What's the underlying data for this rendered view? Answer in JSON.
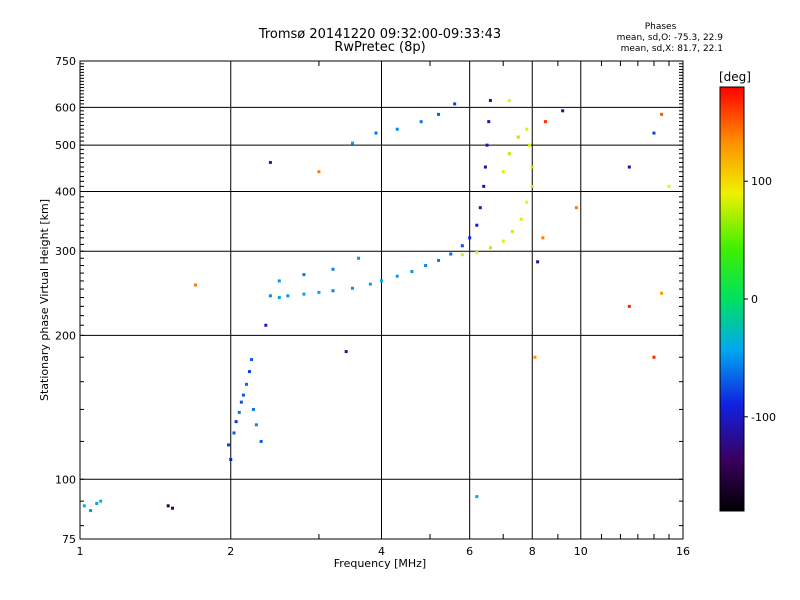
{
  "header": {
    "title_line1": "Tromsø 20141220 09:32:00-09:33:43",
    "title_line2": "RwPretec (8p)"
  },
  "phases": {
    "heading": "Phases",
    "line_o": "mean, sd,O: -75.3, 22.9",
    "line_x": "mean, sd,X:  81.7, 22.1"
  },
  "colorbar": {
    "label": "[deg]",
    "ticks": [
      "100",
      "0",
      "-100"
    ],
    "tick_values": [
      100,
      0,
      -100
    ],
    "range": [
      -180,
      180
    ]
  },
  "chart_data": {
    "type": "scatter",
    "title": "Tromsø 20141220 09:32:00-09:33:43",
    "subtitle": "RwPretec (8p)",
    "xlabel": "Frequency [MHz]",
    "ylabel": "Stationary phase Virtual Height [km]",
    "x_scale": "log",
    "y_scale": "log",
    "xlim": [
      1,
      16
    ],
    "ylim": [
      75,
      750
    ],
    "x_ticks": [
      1,
      2,
      4,
      6,
      8,
      10,
      16
    ],
    "x_tick_labels": [
      "1",
      "2",
      "4",
      "6",
      "8",
      "10",
      "16"
    ],
    "y_ticks": [
      75,
      100,
      200,
      300,
      400,
      500,
      600,
      750
    ],
    "y_tick_labels": [
      "75",
      "100",
      "200",
      "300",
      "400",
      "500",
      "600",
      "750"
    ],
    "grid": true,
    "color_scale": "phase [deg], rainbow from -180 (black) to 180 (red)",
    "series": [
      {
        "name": "O",
        "points": [
          {
            "x": 1.02,
            "y": 88,
            "phase": -40
          },
          {
            "x": 1.05,
            "y": 86,
            "phase": -50
          },
          {
            "x": 1.08,
            "y": 89,
            "phase": -45
          },
          {
            "x": 1.1,
            "y": 90,
            "phase": -35
          },
          {
            "x": 1.5,
            "y": 88,
            "phase": -150
          },
          {
            "x": 1.53,
            "y": 87,
            "phase": -140
          },
          {
            "x": 2.0,
            "y": 110,
            "phase": -90
          },
          {
            "x": 1.98,
            "y": 118,
            "phase": -80
          },
          {
            "x": 2.03,
            "y": 125,
            "phase": -70
          },
          {
            "x": 2.05,
            "y": 132,
            "phase": -85
          },
          {
            "x": 2.08,
            "y": 138,
            "phase": -60
          },
          {
            "x": 2.1,
            "y": 145,
            "phase": -75
          },
          {
            "x": 2.12,
            "y": 150,
            "phase": -70
          },
          {
            "x": 2.15,
            "y": 158,
            "phase": -65
          },
          {
            "x": 2.18,
            "y": 168,
            "phase": -80
          },
          {
            "x": 2.2,
            "y": 178,
            "phase": -70
          },
          {
            "x": 2.22,
            "y": 140,
            "phase": -60
          },
          {
            "x": 2.25,
            "y": 130,
            "phase": -55
          },
          {
            "x": 2.3,
            "y": 120,
            "phase": -70
          },
          {
            "x": 2.35,
            "y": 210,
            "phase": -100
          },
          {
            "x": 2.4,
            "y": 242,
            "phase": -55
          },
          {
            "x": 2.5,
            "y": 240,
            "phase": -45
          },
          {
            "x": 2.6,
            "y": 242,
            "phase": -50
          },
          {
            "x": 2.8,
            "y": 244,
            "phase": -45
          },
          {
            "x": 3.0,
            "y": 246,
            "phase": -40
          },
          {
            "x": 3.2,
            "y": 248,
            "phase": -55
          },
          {
            "x": 3.5,
            "y": 251,
            "phase": -50
          },
          {
            "x": 3.8,
            "y": 256,
            "phase": -45
          },
          {
            "x": 4.0,
            "y": 260,
            "phase": -40
          },
          {
            "x": 4.3,
            "y": 266,
            "phase": -45
          },
          {
            "x": 4.6,
            "y": 272,
            "phase": -50
          },
          {
            "x": 4.9,
            "y": 280,
            "phase": -55
          },
          {
            "x": 5.2,
            "y": 287,
            "phase": -60
          },
          {
            "x": 5.5,
            "y": 296,
            "phase": -65
          },
          {
            "x": 5.8,
            "y": 308,
            "phase": -75
          },
          {
            "x": 6.0,
            "y": 320,
            "phase": -90
          },
          {
            "x": 6.2,
            "y": 340,
            "phase": -100
          },
          {
            "x": 6.3,
            "y": 370,
            "phase": -105
          },
          {
            "x": 6.4,
            "y": 410,
            "phase": -110
          },
          {
            "x": 6.45,
            "y": 450,
            "phase": -115
          },
          {
            "x": 6.5,
            "y": 500,
            "phase": -110
          },
          {
            "x": 6.55,
            "y": 560,
            "phase": -115
          },
          {
            "x": 6.6,
            "y": 620,
            "phase": -110
          },
          {
            "x": 2.5,
            "y": 260,
            "phase": -50
          },
          {
            "x": 2.8,
            "y": 268,
            "phase": -60
          },
          {
            "x": 3.2,
            "y": 275,
            "phase": -55
          },
          {
            "x": 3.6,
            "y": 290,
            "phase": -50
          },
          {
            "x": 3.5,
            "y": 505,
            "phase": -45
          },
          {
            "x": 3.9,
            "y": 530,
            "phase": -60
          },
          {
            "x": 4.3,
            "y": 540,
            "phase": -55
          },
          {
            "x": 4.8,
            "y": 560,
            "phase": -60
          },
          {
            "x": 5.2,
            "y": 580,
            "phase": -70
          },
          {
            "x": 5.6,
            "y": 610,
            "phase": -80
          },
          {
            "x": 2.4,
            "y": 460,
            "phase": -90
          },
          {
            "x": 3.4,
            "y": 185,
            "phase": -110
          },
          {
            "x": 6.2,
            "y": 92,
            "phase": -40
          },
          {
            "x": 8.2,
            "y": 285,
            "phase": -120
          },
          {
            "x": 9.2,
            "y": 590,
            "phase": -120
          },
          {
            "x": 12.5,
            "y": 450,
            "phase": -110
          },
          {
            "x": 14,
            "y": 530,
            "phase": -80
          }
        ]
      },
      {
        "name": "X",
        "points": [
          {
            "x": 5.8,
            "y": 295,
            "phase": 80
          },
          {
            "x": 6.2,
            "y": 298,
            "phase": 90
          },
          {
            "x": 6.6,
            "y": 305,
            "phase": 75
          },
          {
            "x": 7.0,
            "y": 315,
            "phase": 85
          },
          {
            "x": 7.3,
            "y": 330,
            "phase": 80
          },
          {
            "x": 7.6,
            "y": 350,
            "phase": 85
          },
          {
            "x": 7.8,
            "y": 380,
            "phase": 90
          },
          {
            "x": 8.0,
            "y": 410,
            "phase": 80
          },
          {
            "x": 8.0,
            "y": 450,
            "phase": 75
          },
          {
            "x": 7.9,
            "y": 500,
            "phase": 80
          },
          {
            "x": 7.8,
            "y": 540,
            "phase": 85
          },
          {
            "x": 7.5,
            "y": 520,
            "phase": 70
          },
          {
            "x": 7.2,
            "y": 480,
            "phase": 75
          },
          {
            "x": 7.0,
            "y": 440,
            "phase": 85
          },
          {
            "x": 7.2,
            "y": 620,
            "phase": 90
          },
          {
            "x": 1.7,
            "y": 255,
            "phase": 140
          },
          {
            "x": 3.0,
            "y": 440,
            "phase": 140
          },
          {
            "x": 8.1,
            "y": 180,
            "phase": 130
          },
          {
            "x": 8.4,
            "y": 320,
            "phase": 140
          },
          {
            "x": 9.8,
            "y": 370,
            "phase": 140
          },
          {
            "x": 14,
            "y": 180,
            "phase": 170
          },
          {
            "x": 14.5,
            "y": 580,
            "phase": 150
          },
          {
            "x": 15,
            "y": 410,
            "phase": 90
          },
          {
            "x": 14.5,
            "y": 245,
            "phase": 130
          },
          {
            "x": 12.5,
            "y": 230,
            "phase": 170
          },
          {
            "x": 8.5,
            "y": 560,
            "phase": 165
          }
        ]
      }
    ]
  }
}
